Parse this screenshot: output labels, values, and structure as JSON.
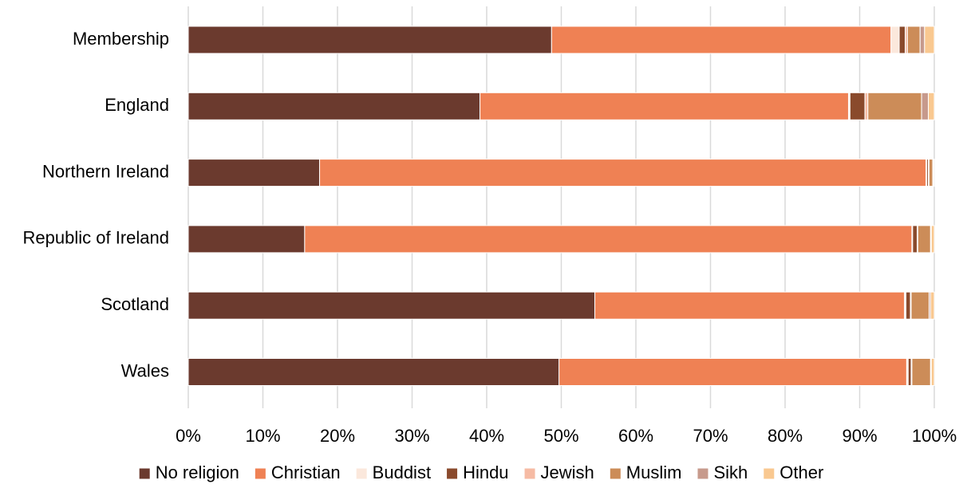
{
  "chart_data": {
    "type": "bar",
    "orientation": "horizontal",
    "stacked": "percent",
    "title": "",
    "xlabel": "",
    "ylabel": "",
    "xlim": [
      0,
      100
    ],
    "x_ticks": [
      "0%",
      "10%",
      "20%",
      "30%",
      "40%",
      "50%",
      "60%",
      "70%",
      "80%",
      "90%",
      "100%"
    ],
    "grid": "vertical",
    "legend_position": "bottom",
    "categories": [
      "Membership",
      "England",
      "Northern Ireland",
      "Republic of Ireland",
      "Scotland",
      "Wales"
    ],
    "series": [
      {
        "name": "No religion",
        "color": "#6b3a2e",
        "values": [
          48.7,
          39.1,
          17.6,
          15.6,
          54.5,
          49.7
        ]
      },
      {
        "name": "Christian",
        "color": "#ef8154",
        "values": [
          45.5,
          49.4,
          81.3,
          81.4,
          41.5,
          46.6
        ]
      },
      {
        "name": "Buddist",
        "color": "#fbe8dc",
        "values": [
          1.1,
          0.2,
          0.1,
          0.1,
          0.2,
          0.2
        ]
      },
      {
        "name": "Hindu",
        "color": "#8a4a2c",
        "values": [
          0.8,
          2.0,
          0.2,
          0.6,
          0.6,
          0.4
        ]
      },
      {
        "name": "Jewish",
        "color": "#f6bba4",
        "values": [
          0.3,
          0.4,
          0.1,
          0.1,
          0.1,
          0.1
        ]
      },
      {
        "name": "Muslim",
        "color": "#cc8c58",
        "values": [
          1.7,
          7.2,
          0.5,
          1.7,
          2.4,
          2.5
        ]
      },
      {
        "name": "Sikh",
        "color": "#c79a8c",
        "values": [
          0.6,
          0.9,
          0.1,
          0.1,
          0.2,
          0.1
        ]
      },
      {
        "name": "Other",
        "color": "#f9c890",
        "values": [
          1.3,
          0.8,
          0.1,
          0.4,
          0.5,
          0.4
        ]
      }
    ]
  }
}
